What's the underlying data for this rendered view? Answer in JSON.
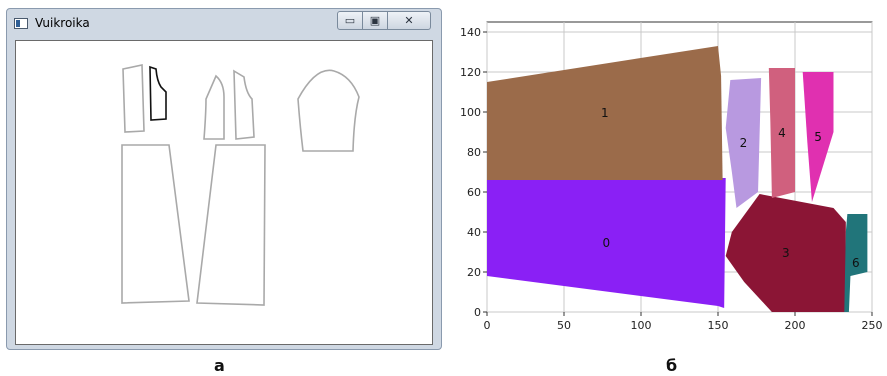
{
  "window": {
    "title": "Vuikroika",
    "minimize_glyph": "▭",
    "maximize_glyph": "▣",
    "close_glyph": "✕",
    "icon": "window-app-icon"
  },
  "captions": {
    "left": "a",
    "right": "б"
  },
  "chart_data": {
    "type": "area",
    "title": "",
    "xlabel": "",
    "ylabel": "",
    "xlim": [
      0,
      250
    ],
    "ylim": [
      0,
      145
    ],
    "xticks": [
      0,
      50,
      100,
      150,
      200,
      250
    ],
    "yticks": [
      0,
      20,
      40,
      60,
      80,
      100,
      120,
      140
    ],
    "grid": true,
    "regions": [
      {
        "label": "0",
        "color": "#8a20f5",
        "x": [
          0,
          155
        ],
        "y": [
          2,
          67
        ]
      },
      {
        "label": "1",
        "color": "#9b6b4a",
        "x": [
          0,
          153
        ],
        "y": [
          66,
          133
        ]
      },
      {
        "label": "2",
        "color": "#b899e0",
        "x": [
          155,
          178
        ],
        "y": [
          52,
          117
        ]
      },
      {
        "label": "3",
        "color": "#8b1535",
        "x": [
          155,
          233
        ],
        "y": [
          0,
          59
        ]
      },
      {
        "label": "4",
        "color": "#d0607e",
        "x": [
          183,
          200
        ],
        "y": [
          57,
          122
        ]
      },
      {
        "label": "5",
        "color": "#e030b0",
        "x": [
          205,
          225
        ],
        "y": [
          55,
          120
        ]
      },
      {
        "label": "6",
        "color": "#21757a",
        "x": [
          232,
          247
        ],
        "y": [
          0,
          49
        ]
      }
    ]
  }
}
